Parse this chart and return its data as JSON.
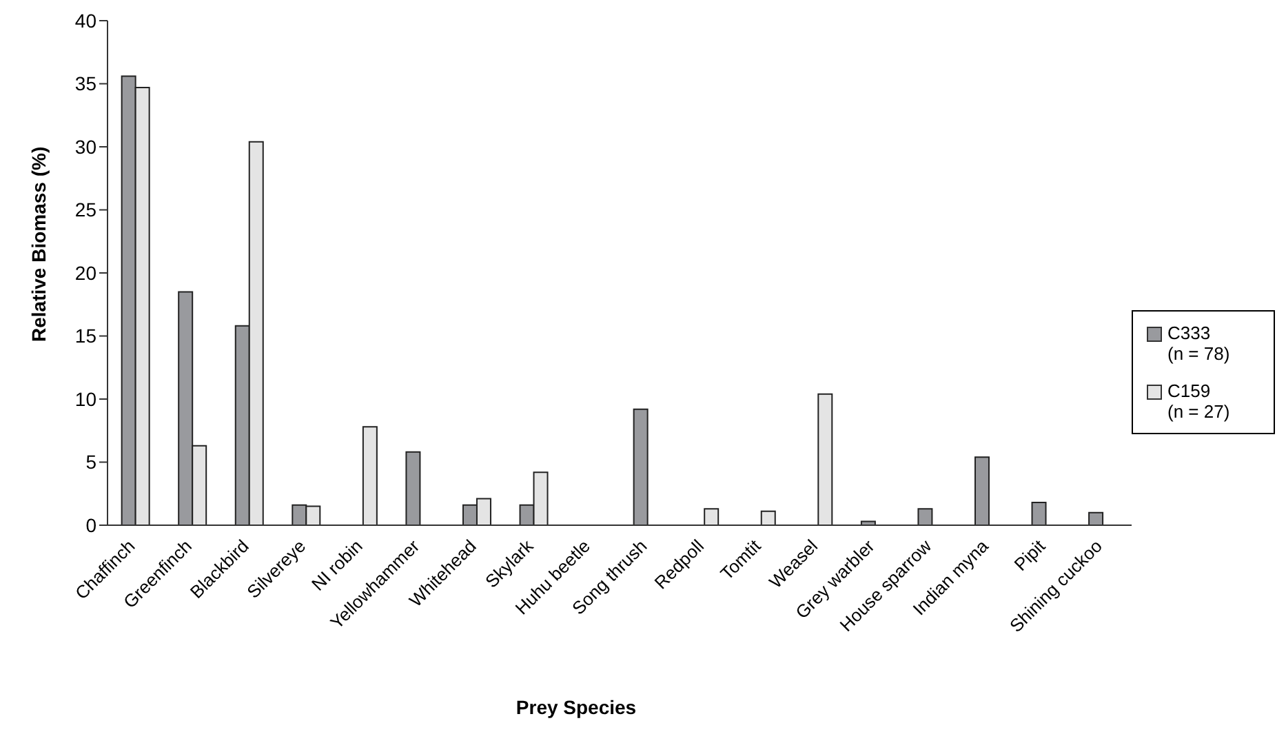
{
  "chart_data": {
    "type": "bar",
    "xlabel": "Prey Species",
    "ylabel": "Relative Biomass (%)",
    "categories": [
      "Chaffinch",
      "Greenfinch",
      "Blackbird",
      "Silvereye",
      "NI robin",
      "Yellowhammer",
      "Whitehead",
      "Skylark",
      "Huhu beetle",
      "Song thrush",
      "Redpoll",
      "Tomtit",
      "Weasel",
      "Grey warbler",
      "House sparrow",
      "Indian myna",
      "Pipit",
      "Shining cuckoo"
    ],
    "series": [
      {
        "name": "C333\n(n = 78)",
        "color": "#999a9e",
        "values": [
          35.6,
          18.5,
          15.8,
          1.6,
          0,
          5.8,
          1.6,
          1.6,
          0,
          9.2,
          0,
          0,
          0,
          0.3,
          1.3,
          5.4,
          1.8,
          1.0
        ]
      },
      {
        "name": "C159\n(n = 27)",
        "color": "#e4e4e4",
        "values": [
          34.7,
          6.3,
          30.4,
          1.5,
          7.8,
          0,
          2.1,
          4.2,
          0,
          0,
          1.3,
          1.1,
          10.4,
          0,
          0,
          0,
          0,
          0
        ]
      }
    ],
    "ylim": [
      0,
      40
    ],
    "yticks": [
      0,
      5,
      10,
      15,
      20,
      25,
      30,
      35,
      40
    ],
    "grid": false,
    "legend": "right"
  }
}
